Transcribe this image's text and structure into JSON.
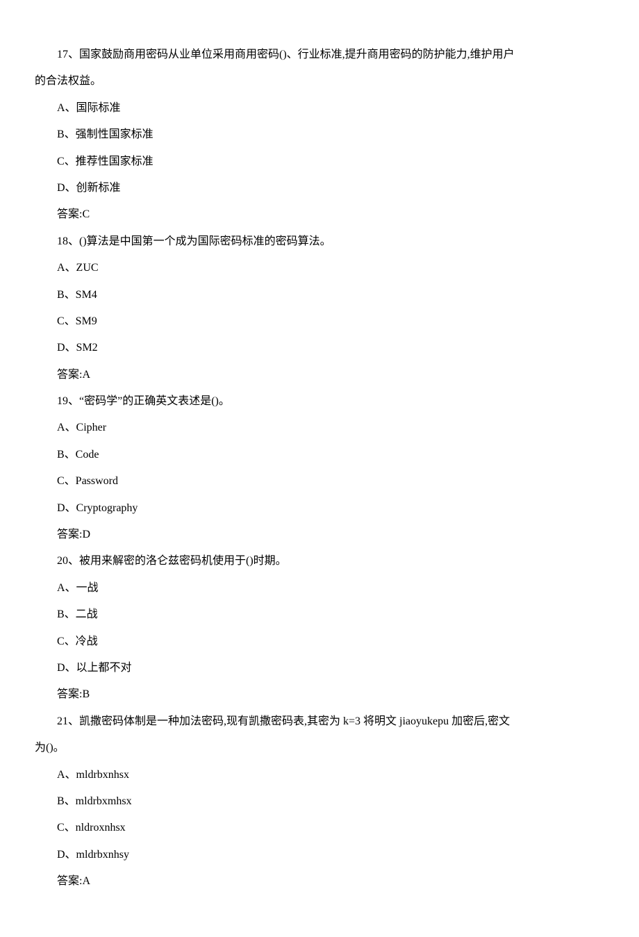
{
  "questions": [
    {
      "number": "17",
      "text_line1": "17、国家鼓励商用密码从业单位采用商用密码()、行业标准,提升商用密码的防护能力,维护用户",
      "text_line2": "的合法权益。",
      "options": {
        "A": "A、国际标准",
        "B": "B、强制性国家标准",
        "C": "C、推荐性国家标准",
        "D": "D、创新标准"
      },
      "answer": "答案:C"
    },
    {
      "number": "18",
      "text_line1": "18、()算法是中国第一个成为国际密码标准的密码算法。",
      "options": {
        "A": "A、ZUC",
        "B": "B、SM4",
        "C": "C、SM9",
        "D": "D、SM2"
      },
      "answer": "答案:A"
    },
    {
      "number": "19",
      "text_line1": "19、“密码学”的正确英文表述是()。",
      "options": {
        "A": "A、Cipher",
        "B": "B、Code",
        "C": "C、Password",
        "D": "D、Cryptography"
      },
      "answer": "答案:D"
    },
    {
      "number": "20",
      "text_line1": "20、被用来解密的洛仑兹密码机使用于()时期。",
      "options": {
        "A": "A、一战",
        "B": "B、二战",
        "C": "C、冷战",
        "D": "D、以上都不对"
      },
      "answer": "答案:B"
    },
    {
      "number": "21",
      "text_line1": "21、凯撒密码体制是一种加法密码,现有凯撒密码表,其密为 k=3 将明文 jiaoyukepu 加密后,密文",
      "text_line2": "为()。",
      "options": {
        "A": "A、mldrbxnhsx",
        "B": "B、mldrbxmhsx",
        "C": "C、nldroxnhsx",
        "D": "D、mldrbxnhsy"
      },
      "answer": "答案:A"
    }
  ]
}
